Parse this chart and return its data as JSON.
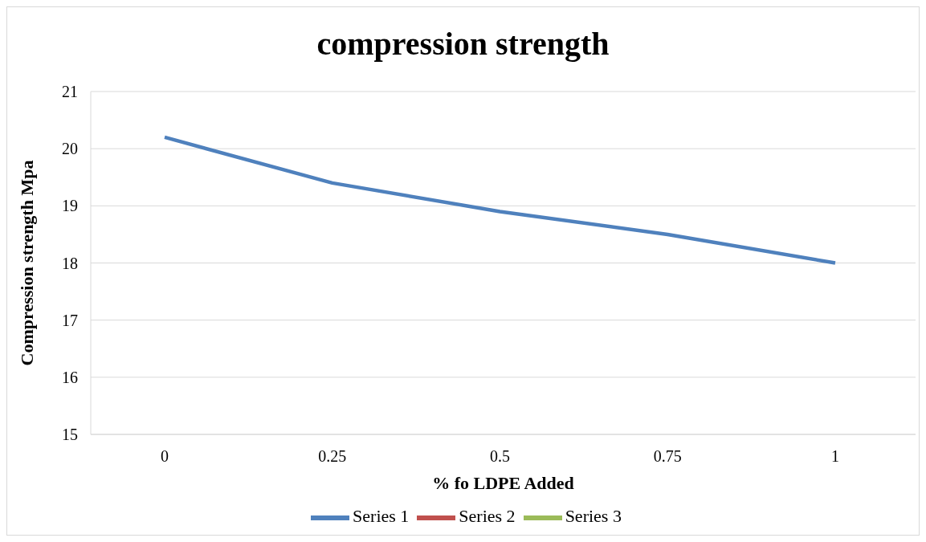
{
  "chart_data": {
    "type": "line",
    "title": "compression strength",
    "xlabel": "% fo LDPE Added",
    "ylabel": "Compression strength Mpa",
    "categories": [
      "0",
      "0.25",
      "0.5",
      "0.75",
      "1"
    ],
    "series": [
      {
        "name": "Series 1",
        "color": "#4f81bd",
        "values": [
          20.2,
          19.4,
          18.9,
          18.5,
          18.0
        ]
      },
      {
        "name": "Series 2",
        "color": "#c0504d",
        "values": [
          null,
          null,
          null,
          null,
          null
        ]
      },
      {
        "name": "Series 3",
        "color": "#9bbb59",
        "values": [
          null,
          null,
          null,
          null,
          null
        ]
      }
    ],
    "ylim": [
      15,
      21
    ],
    "yticks": [
      15,
      16,
      17,
      18,
      19,
      20,
      21
    ],
    "grid": "y",
    "legend": "bottom",
    "marker": "none",
    "line_style": "solid"
  }
}
